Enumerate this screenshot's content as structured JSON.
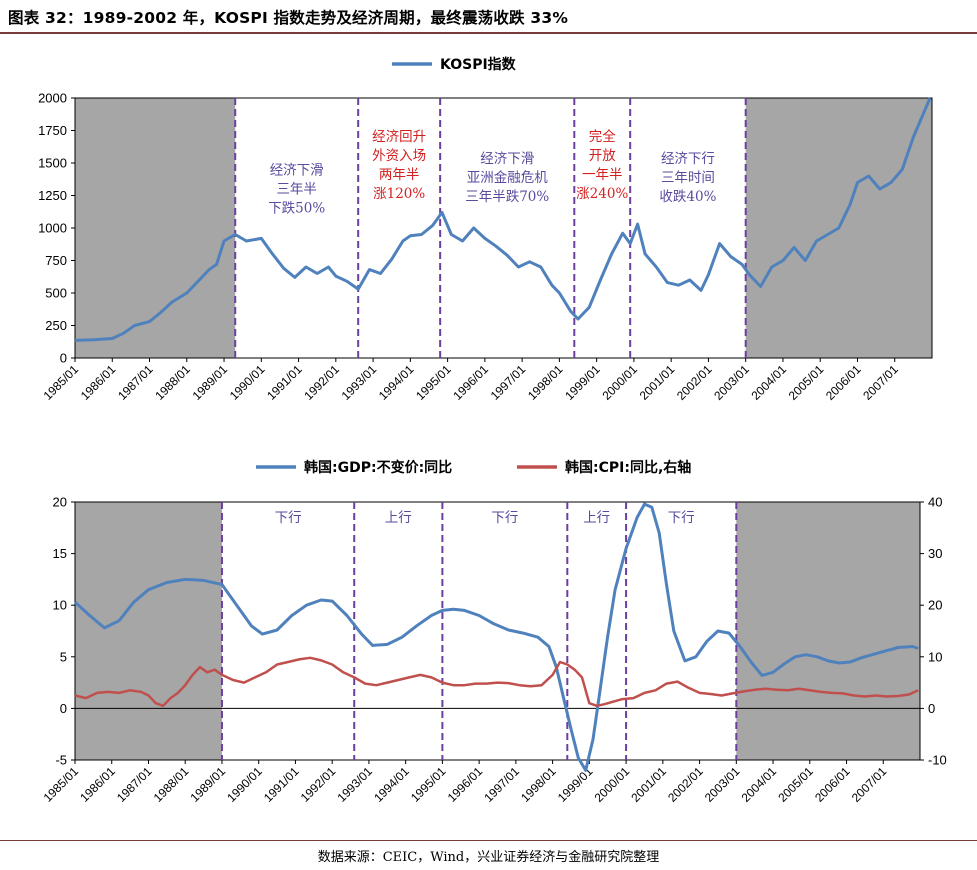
{
  "figure": {
    "title": "图表 32：1989-2002 年，KOSPI 指数走势及经济周期，最终震荡收跌 33%",
    "source": "数据来源：CEIC，Wind，兴业证券经济与金融研究院整理"
  },
  "colors": {
    "kospi": "#4f81bd",
    "gdp": "#4f81bd",
    "cpi": "#c0504d",
    "shade": "#a6a6a6",
    "divider": "#6a3fa0",
    "annotation_blue": "#5b4a9e",
    "annotation_red": "#d42020"
  },
  "chart_data": [
    {
      "type": "line",
      "legend": [
        "KOSPI指数"
      ],
      "legend_position": "top-center",
      "ylim": [
        0,
        2000
      ],
      "yticks": [
        0,
        250,
        500,
        750,
        1000,
        1250,
        1500,
        1750,
        2000
      ],
      "xlim": [
        1985.0,
        2008.0
      ],
      "xticks": [
        "1985/01",
        "1986/01",
        "1987/01",
        "1988/01",
        "1989/01",
        "1990/01",
        "1991/01",
        "1992/01",
        "1993/01",
        "1994/01",
        "1995/01",
        "1996/01",
        "1997/01",
        "1998/01",
        "1999/01",
        "2000/01",
        "2001/01",
        "2002/01",
        "2003/01",
        "2004/01",
        "2005/01",
        "2006/01",
        "2007/01"
      ],
      "shaded_ranges": [
        [
          1985.0,
          1989.3
        ],
        [
          2003.0,
          2008.0
        ]
      ],
      "dividers": [
        1989.3,
        1992.6,
        1994.8,
        1998.4,
        1999.9,
        2003.0
      ],
      "annotations": [
        {
          "x": 1990.95,
          "color": "blue",
          "lines": [
            "经济下滑",
            "三年半",
            "下跌50%"
          ],
          "top_value": 1410
        },
        {
          "x": 1993.7,
          "color": "red",
          "lines": [
            "经济回升",
            "外资入场",
            "两年半",
            "涨120%"
          ],
          "top_value": 1670
        },
        {
          "x": 1996.6,
          "color": "blue",
          "lines": [
            "经济下滑",
            "亚洲金融危机",
            "三年半跌70%"
          ],
          "top_value": 1500
        },
        {
          "x": 1999.15,
          "color": "red",
          "lines": [
            "完全",
            "开放",
            "一年半",
            "涨240%"
          ],
          "top_value": 1670
        },
        {
          "x": 2001.45,
          "color": "blue",
          "lines": [
            "经济下行",
            "三年时间",
            "收跌40%"
          ],
          "top_value": 1500
        }
      ],
      "series": [
        {
          "name": "KOSPI指数",
          "x": [
            1985.0,
            1985.5,
            1986.0,
            1986.3,
            1986.6,
            1987.0,
            1987.3,
            1987.6,
            1988.0,
            1988.3,
            1988.6,
            1988.8,
            1989.0,
            1989.3,
            1989.6,
            1990.0,
            1990.3,
            1990.6,
            1990.9,
            1991.2,
            1991.5,
            1991.8,
            1992.0,
            1992.3,
            1992.6,
            1992.9,
            1993.2,
            1993.5,
            1993.8,
            1994.0,
            1994.3,
            1994.6,
            1994.85,
            1995.1,
            1995.4,
            1995.7,
            1996.0,
            1996.3,
            1996.6,
            1996.9,
            1997.2,
            1997.5,
            1997.8,
            1998.0,
            1998.3,
            1998.5,
            1998.8,
            1999.1,
            1999.4,
            1999.7,
            1999.9,
            2000.1,
            2000.3,
            2000.6,
            2000.9,
            2001.2,
            2001.5,
            2001.8,
            2002.0,
            2002.3,
            2002.6,
            2002.9,
            2003.1,
            2003.4,
            2003.7,
            2004.0,
            2004.3,
            2004.6,
            2004.9,
            2005.2,
            2005.5,
            2005.8,
            2006.0,
            2006.3,
            2006.6,
            2006.9,
            2007.2,
            2007.5,
            2007.8,
            2007.95
          ],
          "values": [
            135,
            140,
            150,
            190,
            250,
            280,
            350,
            430,
            500,
            590,
            680,
            720,
            900,
            950,
            900,
            920,
            800,
            690,
            620,
            700,
            650,
            700,
            630,
            590,
            530,
            680,
            650,
            760,
            900,
            940,
            950,
            1020,
            1120,
            950,
            900,
            1000,
            920,
            860,
            790,
            700,
            740,
            700,
            560,
            500,
            360,
            300,
            390,
            600,
            800,
            960,
            880,
            1030,
            800,
            700,
            580,
            560,
            600,
            520,
            640,
            880,
            780,
            720,
            640,
            550,
            700,
            750,
            850,
            750,
            900,
            950,
            1000,
            1180,
            1350,
            1400,
            1300,
            1350,
            1450,
            1700,
            1900,
            2000
          ]
        }
      ]
    },
    {
      "type": "line",
      "legend": [
        "韩国:GDP:不变价:同比",
        "韩国:CPI:同比,右轴"
      ],
      "legend_position": "top-center",
      "ylim": [
        -5,
        20
      ],
      "yticks": [
        -5,
        0,
        5,
        10,
        15,
        20
      ],
      "y2lim": [
        -10,
        40
      ],
      "y2ticks": [
        -10,
        0,
        10,
        20,
        30,
        40
      ],
      "xlim": [
        1985.0,
        2008.0
      ],
      "xticks": [
        "1985/01",
        "1986/01",
        "1987/01",
        "1988/01",
        "1989/01",
        "1990/01",
        "1991/01",
        "1992/01",
        "1993/01",
        "1994/01",
        "1995/01",
        "1996/01",
        "1997/01",
        "1998/01",
        "1999/01",
        "2000/01",
        "2001/01",
        "2002/01",
        "2003/01",
        "2004/01",
        "2005/01",
        "2006/01",
        "2007/01"
      ],
      "shaded_ranges": [
        [
          1985.0,
          1989.0
        ],
        [
          2003.0,
          2008.0
        ]
      ],
      "dividers": [
        1989.0,
        1992.6,
        1995.0,
        1998.4,
        2000.0,
        2003.0
      ],
      "phase_labels": [
        {
          "x": 1990.8,
          "text": "下行"
        },
        {
          "x": 1993.8,
          "text": "上行"
        },
        {
          "x": 1996.7,
          "text": "下行"
        },
        {
          "x": 1999.2,
          "text": "上行"
        },
        {
          "x": 2001.5,
          "text": "下行"
        }
      ],
      "series": [
        {
          "name": "韩国:GDP:不变价:同比",
          "axis": "left",
          "x": [
            1985.0,
            1985.4,
            1985.8,
            1986.2,
            1986.6,
            1987.0,
            1987.5,
            1988.0,
            1988.5,
            1989.0,
            1989.4,
            1989.8,
            1990.1,
            1990.5,
            1990.9,
            1991.3,
            1991.7,
            1992.0,
            1992.4,
            1992.8,
            1993.1,
            1993.5,
            1993.9,
            1994.3,
            1994.7,
            1995.0,
            1995.3,
            1995.6,
            1996.0,
            1996.4,
            1996.8,
            1997.2,
            1997.6,
            1997.9,
            1998.1,
            1998.3,
            1998.5,
            1998.7,
            1998.9,
            1999.1,
            1999.3,
            1999.5,
            1999.7,
            2000.0,
            2000.3,
            2000.5,
            2000.7,
            2000.9,
            2001.1,
            2001.3,
            2001.6,
            2001.9,
            2002.2,
            2002.5,
            2002.8,
            2003.1,
            2003.4,
            2003.7,
            2004.0,
            2004.3,
            2004.6,
            2004.9,
            2005.2,
            2005.5,
            2005.8,
            2006.1,
            2006.4,
            2006.7,
            2007.0,
            2007.4,
            2007.8,
            2007.95
          ],
          "values": [
            10.3,
            9.0,
            7.8,
            8.5,
            10.3,
            11.5,
            12.2,
            12.5,
            12.4,
            12.0,
            10.0,
            8.0,
            7.2,
            7.6,
            9.0,
            10.0,
            10.5,
            10.4,
            9.0,
            7.2,
            6.1,
            6.2,
            6.9,
            8.0,
            9.0,
            9.5,
            9.6,
            9.5,
            9.0,
            8.2,
            7.6,
            7.3,
            6.9,
            6.0,
            4.0,
            1.0,
            -2.0,
            -4.8,
            -6.0,
            -3.0,
            2.0,
            7.0,
            11.5,
            15.5,
            18.5,
            19.8,
            19.5,
            17.0,
            12.0,
            7.5,
            4.6,
            5.0,
            6.5,
            7.5,
            7.3,
            6.0,
            4.5,
            3.2,
            3.5,
            4.3,
            5.0,
            5.2,
            5.0,
            4.6,
            4.4,
            4.5,
            4.9,
            5.2,
            5.5,
            5.9,
            6.0,
            5.8
          ]
        },
        {
          "name": "韩国:CPI:同比,右轴",
          "axis": "right",
          "x": [
            1985.0,
            1985.3,
            1985.6,
            1985.9,
            1986.2,
            1986.5,
            1986.8,
            1987.0,
            1987.2,
            1987.4,
            1987.6,
            1987.8,
            1988.0,
            1988.2,
            1988.4,
            1988.6,
            1988.8,
            1989.0,
            1989.3,
            1989.6,
            1989.9,
            1990.2,
            1990.5,
            1990.8,
            1991.1,
            1991.4,
            1991.7,
            1992.0,
            1992.3,
            1992.6,
            1992.9,
            1993.2,
            1993.5,
            1993.8,
            1994.1,
            1994.4,
            1994.7,
            1995.0,
            1995.3,
            1995.6,
            1995.9,
            1996.2,
            1996.5,
            1996.8,
            1997.1,
            1997.4,
            1997.7,
            1998.0,
            1998.2,
            1998.4,
            1998.6,
            1998.8,
            1999.0,
            1999.2,
            1999.4,
            1999.6,
            1999.9,
            2000.2,
            2000.5,
            2000.8,
            2001.1,
            2001.4,
            2001.7,
            2002.0,
            2002.3,
            2002.6,
            2002.9,
            2003.2,
            2003.5,
            2003.8,
            2004.1,
            2004.4,
            2004.7,
            2005.0,
            2005.3,
            2005.6,
            2005.9,
            2006.2,
            2006.5,
            2006.8,
            2007.1,
            2007.4,
            2007.7,
            2007.95
          ],
          "values": [
            2.5,
            2.0,
            3.0,
            3.2,
            3.0,
            3.5,
            3.2,
            2.5,
            1.0,
            0.5,
            2.0,
            3.0,
            4.5,
            6.5,
            8.0,
            7.0,
            7.5,
            6.5,
            5.5,
            5.0,
            6.0,
            7.0,
            8.5,
            9.0,
            9.5,
            9.8,
            9.3,
            8.5,
            7.0,
            6.0,
            4.8,
            4.5,
            5.0,
            5.5,
            6.0,
            6.5,
            6.0,
            5.0,
            4.5,
            4.5,
            4.8,
            4.8,
            5.0,
            4.9,
            4.5,
            4.3,
            4.5,
            6.5,
            9.0,
            8.5,
            7.5,
            6.0,
            1.0,
            0.5,
            0.8,
            1.2,
            1.8,
            2.0,
            3.0,
            3.5,
            4.8,
            5.2,
            4.0,
            3.0,
            2.8,
            2.5,
            2.9,
            3.3,
            3.6,
            3.8,
            3.6,
            3.5,
            3.8,
            3.5,
            3.2,
            3.0,
            2.9,
            2.5,
            2.3,
            2.5,
            2.3,
            2.4,
            2.7,
            3.5
          ]
        }
      ]
    }
  ]
}
